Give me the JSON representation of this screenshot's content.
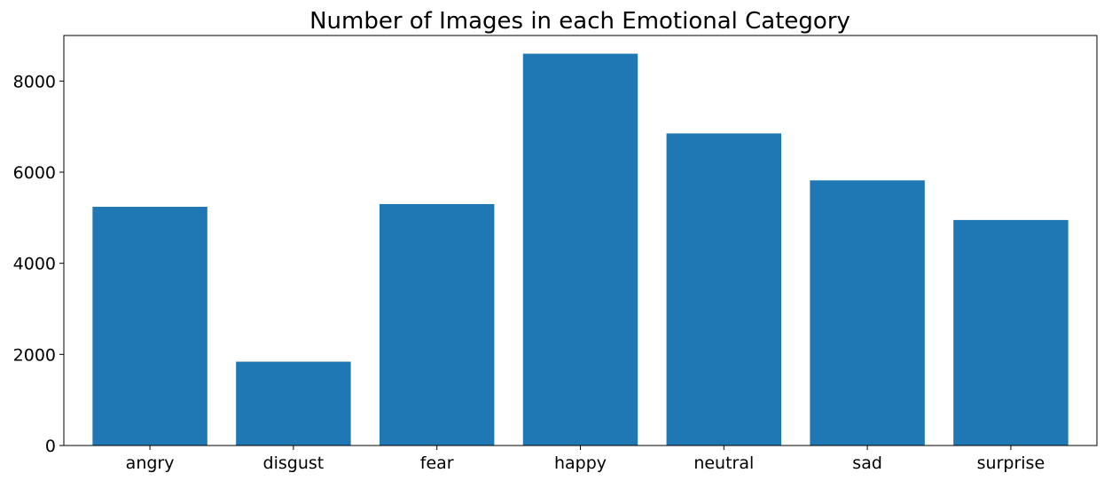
{
  "chart_data": {
    "type": "bar",
    "title": "Number of Images in each Emotional Category",
    "xlabel": "",
    "ylabel": "",
    "categories": [
      "angry",
      "disgust",
      "fear",
      "happy",
      "neutral",
      "sad",
      "surprise"
    ],
    "values": [
      5240,
      1840,
      5300,
      8600,
      6850,
      5820,
      4950
    ],
    "ylim": [
      0,
      9000
    ],
    "yticks": [
      0,
      2000,
      4000,
      6000,
      8000
    ],
    "bar_color": "#1f77b4",
    "grid": false,
    "legend": "none"
  }
}
